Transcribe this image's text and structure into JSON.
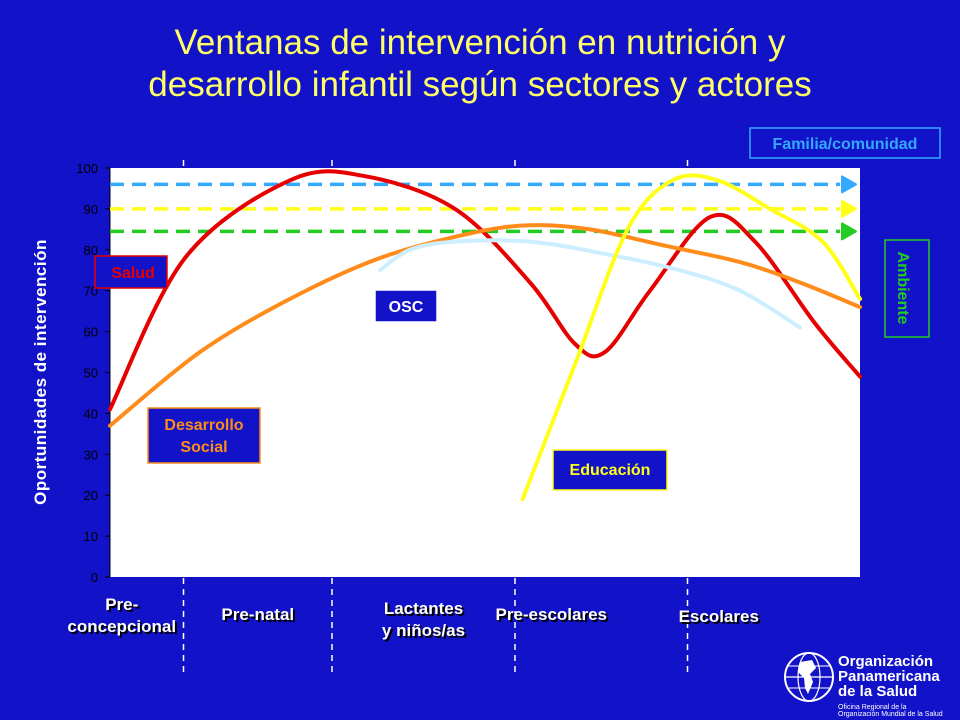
{
  "slide": {
    "title_line1": "Ventanas de intervención en nutrición y",
    "title_line2": "desarrollo infantil según sectores y actores"
  },
  "chart_data": {
    "type": "line",
    "ylabel": "Oportunidades de intervención",
    "ylim": [
      0,
      100
    ],
    "yticks": [
      0,
      10,
      20,
      30,
      40,
      50,
      60,
      70,
      80,
      90,
      100
    ],
    "xlim": [
      0,
      5
    ],
    "stages": [
      {
        "label_lines": [
          "Pre-",
          "concepcional"
        ]
      },
      {
        "label_lines": [
          "Pre-natal"
        ]
      },
      {
        "label_lines": [
          "Lactantes",
          "y niños/as"
        ]
      },
      {
        "label_lines": [
          "Pre-escolares"
        ]
      },
      {
        "label_lines": [
          "Escolares"
        ]
      }
    ],
    "stage_boundaries": [
      0.49,
      1.48,
      2.7,
      3.85
    ],
    "series": [
      {
        "name": "Salud",
        "color": "#e60000",
        "points": [
          [
            0,
            41
          ],
          [
            0.5,
            78
          ],
          [
            1.2,
            97
          ],
          [
            1.7,
            98
          ],
          [
            2.3,
            90
          ],
          [
            2.8,
            72
          ],
          [
            3.1,
            57
          ],
          [
            3.3,
            55
          ],
          [
            3.6,
            70
          ],
          [
            4.0,
            88
          ],
          [
            4.3,
            82
          ],
          [
            4.7,
            62
          ],
          [
            5.0,
            49
          ]
        ]
      },
      {
        "name": "Desarrollo Social",
        "color": "#ff8c1a",
        "points": [
          [
            0,
            37
          ],
          [
            0.6,
            55
          ],
          [
            1.2,
            68
          ],
          [
            1.8,
            78
          ],
          [
            2.4,
            84
          ],
          [
            2.8,
            86
          ],
          [
            3.2,
            85
          ],
          [
            3.7,
            81
          ],
          [
            4.2,
            77
          ],
          [
            4.6,
            72
          ],
          [
            5.0,
            66
          ]
        ]
      },
      {
        "name": "OSC",
        "color": "#cceeff",
        "points": [
          [
            1.8,
            75
          ],
          [
            2.0,
            80
          ],
          [
            2.3,
            82
          ],
          [
            2.8,
            82
          ],
          [
            3.3,
            79
          ],
          [
            3.8,
            75
          ],
          [
            4.2,
            70
          ],
          [
            4.6,
            61
          ]
        ]
      },
      {
        "name": "Educación",
        "color": "#ffff1a",
        "points": [
          [
            2.75,
            19
          ],
          [
            3.1,
            52
          ],
          [
            3.45,
            85
          ],
          [
            3.75,
            97
          ],
          [
            4.05,
            97
          ],
          [
            4.4,
            90
          ],
          [
            4.75,
            82
          ],
          [
            5.0,
            68
          ]
        ]
      }
    ],
    "reference_lines": [
      {
        "name": "Familia/comunidad",
        "value": 96,
        "color": "#33aaff"
      },
      {
        "name": "",
        "value": 90,
        "color": "#ffff1a"
      },
      {
        "name": "Ambiente",
        "value": 84.5,
        "color": "#22cc22"
      }
    ],
    "labels": {
      "salud": "Salud",
      "desarrollo_line1": "Desarrollo",
      "desarrollo_line2": "Social",
      "osc": "OSC",
      "educacion": "Educación",
      "familia": "Familia/comunidad",
      "ambiente": "Ambiente"
    }
  },
  "logo": {
    "line1": "Organización",
    "line2": "Panamericana",
    "line3": "de la Salud",
    "sub1": "Oficina Regional de la",
    "sub2": "Organización Mundial de la Salud"
  },
  "colors": {
    "background": "#1212c8",
    "plot_area": "#ffffff",
    "title": "#ffff66",
    "axis_text": "#ffffff"
  }
}
